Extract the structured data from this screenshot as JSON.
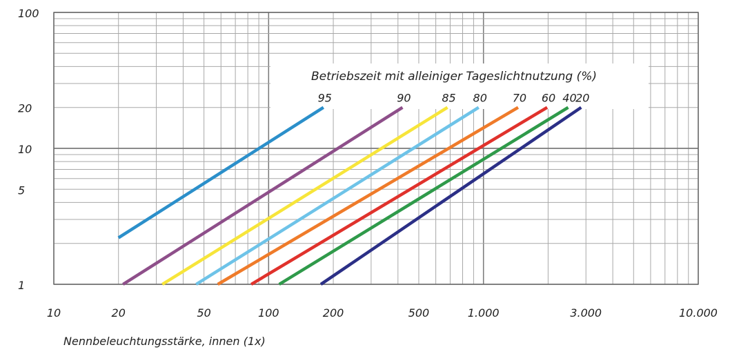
{
  "chart_data": {
    "type": "line",
    "x_scale": "log",
    "y_scale": "log",
    "xlim": [
      10,
      10000
    ],
    "ylim": [
      1,
      100
    ],
    "grid": true,
    "xlabel": "Nennbeleuchtungsstärke, innen (1x)",
    "legend_title": "Betriebszeit mit alleiniger Tageslichtnutzung (%)",
    "x_ticks": [
      {
        "value": 10,
        "label": "10"
      },
      {
        "value": 20,
        "label": "20"
      },
      {
        "value": 50,
        "label": "50"
      },
      {
        "value": 100,
        "label": "100"
      },
      {
        "value": 200,
        "label": "200"
      },
      {
        "value": 500,
        "label": "500"
      },
      {
        "value": 1000,
        "label": "1.000"
      },
      {
        "value": 3000,
        "label": "3.000"
      },
      {
        "value": 10000,
        "label": "10.000"
      }
    ],
    "y_ticks": [
      {
        "value": 1,
        "label": "1"
      },
      {
        "value": 5,
        "label": "5"
      },
      {
        "value": 10,
        "label": "10"
      },
      {
        "value": 20,
        "label": "20"
      },
      {
        "value": 100,
        "label": "100"
      }
    ],
    "series": [
      {
        "name": "95",
        "color": "#2b8fca",
        "points": [
          [
            20,
            2.2
          ],
          [
            180,
            20
          ]
        ]
      },
      {
        "name": "90",
        "color": "#8e4f8a",
        "points": [
          [
            21,
            1
          ],
          [
            420,
            20
          ]
        ]
      },
      {
        "name": "85",
        "color": "#f7e53a",
        "points": [
          [
            32,
            1
          ],
          [
            680,
            20
          ]
        ]
      },
      {
        "name": "80",
        "color": "#6ec3e8",
        "points": [
          [
            46,
            1
          ],
          [
            950,
            20
          ]
        ]
      },
      {
        "name": "70",
        "color": "#ef7b2a",
        "points": [
          [
            58,
            1
          ],
          [
            1450,
            20
          ]
        ]
      },
      {
        "name": "60",
        "color": "#e0322c",
        "points": [
          [
            83,
            1
          ],
          [
            1980,
            20
          ]
        ]
      },
      {
        "name": "40",
        "color": "#2f9a4a",
        "points": [
          [
            112,
            1
          ],
          [
            2480,
            20
          ]
        ]
      },
      {
        "name": "20",
        "color": "#2b2f86",
        "points": [
          [
            175,
            1
          ],
          [
            2850,
            20
          ]
        ]
      }
    ]
  }
}
